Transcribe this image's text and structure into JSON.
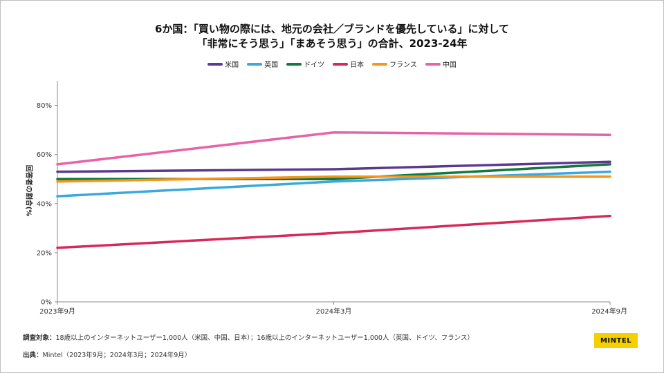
{
  "chart_data": {
    "type": "line",
    "title_line1": "6か国：「買い物の際には、地元の会社／ブランドを優先している」に対して",
    "title_line2": "「非常にそう思う」「まあそう思う」の合計、2023-24年",
    "ylabel": "回答者の割合(%",
    "x": [
      "2023年9月",
      "2024年3月",
      "2024年9月"
    ],
    "y_ticks": [
      "0%",
      "20%",
      "40%",
      "60%",
      "80%"
    ],
    "ylim": [
      0,
      90
    ],
    "grid": false,
    "legend_position": "top-center",
    "series": [
      {
        "name": "米国",
        "color": "#5b3a8e",
        "values": [
          53,
          54,
          57
        ]
      },
      {
        "name": "英国",
        "color": "#3aa8dd",
        "values": [
          43,
          49,
          53
        ]
      },
      {
        "name": "ドイツ",
        "color": "#0f7a3e",
        "values": [
          50,
          50,
          56
        ]
      },
      {
        "name": "日本",
        "color": "#d6295a",
        "values": [
          22,
          28,
          35
        ]
      },
      {
        "name": "フランス",
        "color": "#f7941d",
        "values": [
          49,
          51,
          51
        ]
      },
      {
        "name": "中国",
        "color": "#e862a8",
        "values": [
          56,
          69,
          68
        ]
      }
    ]
  },
  "footer": {
    "target_label": "調査対象：",
    "target_text": "18歳以上のインターネットユーザー1,000人（米国、中国、日本）；16歳以上のインターネットユーザー1,000人（英国、ドイツ、フランス）",
    "source_label": "出典：",
    "source_text": "Mintel（2023年9月；2024年3月；2024年9月）"
  },
  "brand": "MINTEL"
}
